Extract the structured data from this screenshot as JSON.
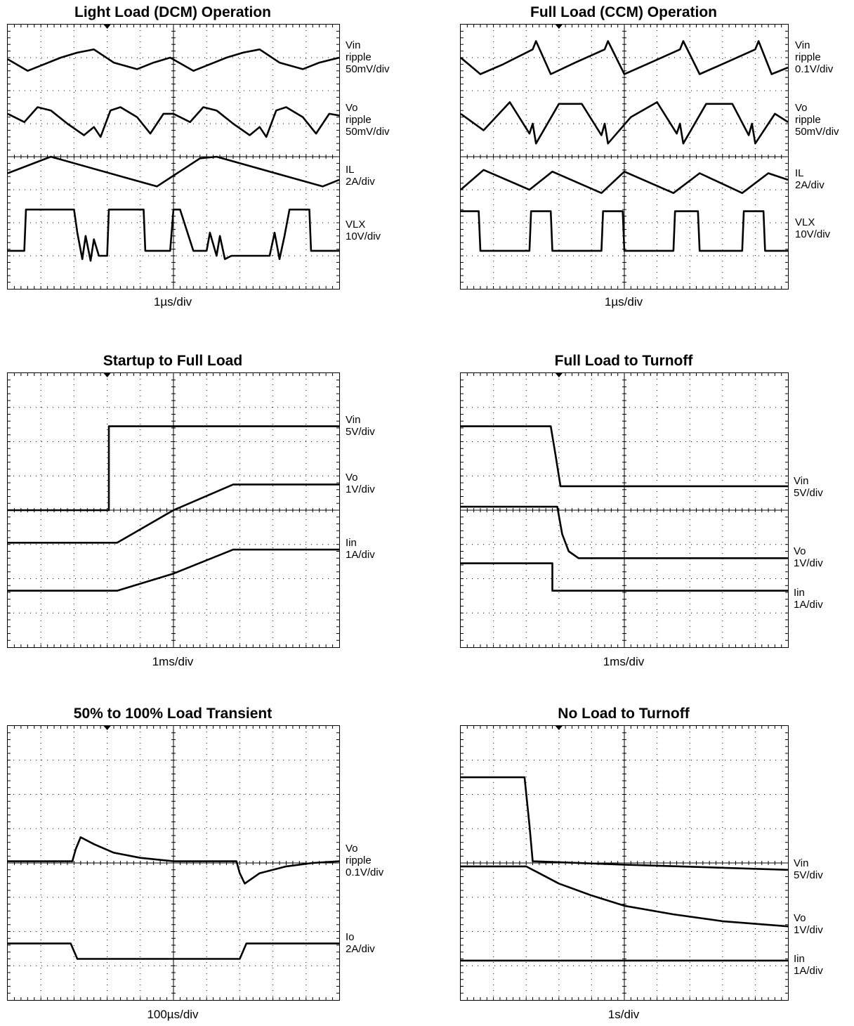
{
  "chart_data": [
    {
      "type": "line",
      "title": "Light Load (DCM) Operation",
      "xlabel": "1µs/div",
      "grid": true,
      "divisions": {
        "x": 10,
        "y": 8
      },
      "xlim": [
        0,
        10
      ],
      "ylim": [
        0,
        8
      ],
      "series": [
        {
          "name": "Vin ripple",
          "scale": "50mV/div",
          "x": [
            0,
            0.6,
            1.1,
            1.6,
            2.1,
            2.6,
            3.2,
            3.9,
            4.4,
            4.9,
            5.6,
            6.1,
            6.6,
            7.1,
            7.6,
            8.2,
            8.9,
            9.4,
            10
          ],
          "y": [
            6.95,
            6.6,
            6.8,
            7.0,
            7.15,
            7.25,
            6.85,
            6.65,
            6.85,
            7.0,
            6.6,
            6.8,
            7.0,
            7.15,
            7.25,
            6.85,
            6.65,
            6.85,
            7.0
          ]
        },
        {
          "name": "Vo ripple",
          "scale": "50mV/div",
          "x": [
            0,
            0.5,
            0.9,
            1.3,
            1.8,
            2.3,
            2.6,
            2.8,
            3.1,
            3.4,
            3.9,
            4.3,
            4.7,
            5.0,
            5.5,
            5.9,
            6.3,
            6.8,
            7.3,
            7.6,
            7.8,
            8.1,
            8.4,
            8.9,
            9.3,
            9.7,
            10
          ],
          "y": [
            5.3,
            5.05,
            5.5,
            5.4,
            5.0,
            4.65,
            4.9,
            4.6,
            5.4,
            5.5,
            5.2,
            4.7,
            5.3,
            5.3,
            5.05,
            5.5,
            5.4,
            5.0,
            4.65,
            4.9,
            4.6,
            5.4,
            5.5,
            5.2,
            4.7,
            5.3,
            5.25
          ]
        },
        {
          "name": "IL",
          "scale": "2A/div",
          "x": [
            0,
            1.3,
            4.5,
            5.8,
            5.8,
            6.3,
            9.5,
            10
          ],
          "y": [
            3.5,
            4.0,
            3.1,
            3.95,
            3.95,
            4.0,
            3.1,
            3.3
          ]
        },
        {
          "name": "VLX",
          "scale": "10V/div",
          "x": [
            0,
            0.5,
            0.55,
            2.0,
            2.1,
            2.25,
            2.35,
            2.5,
            2.6,
            2.75,
            3.0,
            3.05,
            3.25,
            3.6,
            4.1,
            4.15,
            4.9,
            5.0,
            5.05,
            5.2,
            5.6,
            5.7,
            6.0,
            6.1,
            6.3,
            6.4,
            6.55,
            6.75,
            7.9,
            8.05,
            8.2,
            8.35,
            8.5,
            8.6,
            8.85,
            9.1,
            9.15,
            10
          ],
          "y": [
            1.15,
            1.15,
            2.4,
            2.4,
            1.7,
            0.9,
            1.6,
            0.85,
            1.5,
            1.0,
            1.0,
            2.4,
            2.4,
            2.4,
            2.4,
            1.15,
            1.15,
            2.4,
            2.4,
            2.4,
            1.15,
            1.15,
            1.15,
            1.7,
            1.0,
            1.6,
            0.9,
            1.0,
            1.0,
            1.7,
            0.9,
            1.6,
            2.4,
            2.4,
            2.4,
            2.4,
            1.15,
            1.15
          ]
        }
      ],
      "labels": [
        {
          "lines": [
            "Vin",
            "ripple",
            "50mV/div"
          ],
          "y": 7.0
        },
        {
          "lines": [
            "Vo",
            "ripple",
            "50mV/div"
          ],
          "y": 5.1
        },
        {
          "lines": [
            "IL",
            "2A/div"
          ],
          "y": 3.4
        },
        {
          "lines": [
            "VLX",
            "10V/div"
          ],
          "y": 1.75
        }
      ]
    },
    {
      "type": "line",
      "title": "Full Load (CCM) Operation",
      "xlabel": "1µs/div",
      "grid": true,
      "divisions": {
        "x": 10,
        "y": 8
      },
      "xlim": [
        0,
        10
      ],
      "ylim": [
        0,
        8
      ],
      "series": [
        {
          "name": "Vin ripple",
          "scale": "0.1V/div",
          "x": [
            0,
            0.6,
            1.3,
            2.2,
            2.3,
            2.75,
            3.5,
            4.4,
            4.5,
            5.0,
            5.8,
            6.7,
            6.8,
            7.3,
            8.1,
            9.0,
            9.1,
            9.5,
            10
          ],
          "y": [
            7.0,
            6.5,
            6.8,
            7.25,
            7.5,
            6.5,
            6.85,
            7.25,
            7.5,
            6.5,
            6.85,
            7.25,
            7.5,
            6.5,
            6.85,
            7.25,
            7.5,
            6.5,
            6.7
          ]
        },
        {
          "name": "Vo ripple",
          "scale": "50mV/div",
          "x": [
            0,
            0.7,
            1.5,
            2.1,
            2.2,
            2.3,
            3.0,
            3.7,
            4.3,
            4.4,
            4.5,
            5.2,
            6.0,
            6.6,
            6.7,
            6.8,
            7.5,
            8.3,
            8.8,
            8.9,
            9.0,
            9.6,
            10
          ],
          "y": [
            5.3,
            4.8,
            5.65,
            4.7,
            5.0,
            4.4,
            5.6,
            5.6,
            4.65,
            5.0,
            4.4,
            5.2,
            5.65,
            4.7,
            5.0,
            4.4,
            5.6,
            5.6,
            4.65,
            5.0,
            4.4,
            5.3,
            5.05
          ]
        },
        {
          "name": "IL",
          "scale": "2A/div",
          "x": [
            0,
            0.7,
            2.1,
            2.8,
            4.3,
            5.0,
            6.5,
            7.3,
            8.6,
            9.4,
            10
          ],
          "y": [
            3.0,
            3.6,
            3.0,
            3.55,
            2.9,
            3.55,
            2.9,
            3.5,
            2.9,
            3.5,
            3.3
          ]
        },
        {
          "name": "VLX",
          "scale": "10V/div",
          "x": [
            0,
            0.55,
            0.6,
            2.1,
            2.15,
            2.75,
            2.8,
            4.3,
            4.35,
            4.95,
            5.0,
            6.5,
            6.55,
            7.25,
            7.3,
            8.6,
            8.65,
            9.25,
            9.3,
            10
          ],
          "y": [
            2.35,
            2.35,
            1.15,
            1.15,
            2.35,
            2.35,
            1.15,
            1.15,
            2.35,
            2.35,
            1.15,
            1.15,
            2.35,
            2.35,
            1.15,
            1.15,
            2.35,
            2.35,
            1.15,
            1.15
          ]
        }
      ],
      "labels": [
        {
          "lines": [
            "Vin",
            "ripple",
            "0.1V/div"
          ],
          "y": 7.0
        },
        {
          "lines": [
            "Vo",
            "ripple",
            "50mV/div"
          ],
          "y": 5.1
        },
        {
          "lines": [
            "IL",
            "2A/div"
          ],
          "y": 3.3
        },
        {
          "lines": [
            "VLX",
            "10V/div"
          ],
          "y": 1.8
        }
      ]
    },
    {
      "type": "line",
      "title": "Startup to Full Load",
      "xlabel": "1ms/div",
      "grid": true,
      "divisions": {
        "x": 10,
        "y": 8
      },
      "xlim": [
        0,
        10
      ],
      "ylim": [
        0,
        8
      ],
      "series": [
        {
          "name": "Vin",
          "scale": "5V/div",
          "x": [
            0,
            3.05,
            3.05,
            10
          ],
          "y": [
            4.0,
            4.0,
            6.45,
            6.45
          ]
        },
        {
          "name": "Vo",
          "scale": "1V/div",
          "x": [
            0,
            3.3,
            5.0,
            6.8,
            10
          ],
          "y": [
            3.05,
            3.05,
            4.0,
            4.75,
            4.75
          ]
        },
        {
          "name": "Iin",
          "scale": "1A/div",
          "x": [
            0,
            3.3,
            5.0,
            6.8,
            10
          ],
          "y": [
            1.65,
            1.65,
            2.15,
            2.85,
            2.85
          ]
        }
      ],
      "labels": [
        {
          "lines": [
            "Vin",
            "5V/div"
          ],
          "y": 6.45
        },
        {
          "lines": [
            "Vo",
            "1V/div"
          ],
          "y": 4.75
        },
        {
          "lines": [
            "Iin",
            "1A/div"
          ],
          "y": 2.85
        }
      ]
    },
    {
      "type": "line",
      "title": "Full Load to Turnoff",
      "xlabel": "1ms/div",
      "grid": true,
      "divisions": {
        "x": 10,
        "y": 8
      },
      "xlim": [
        0,
        10
      ],
      "ylim": [
        0,
        8
      ],
      "series": [
        {
          "name": "Vin",
          "scale": "5V/div",
          "x": [
            0,
            2.75,
            2.9,
            3.05,
            10
          ],
          "y": [
            6.45,
            6.45,
            5.6,
            4.7,
            4.7
          ]
        },
        {
          "name": "Vo",
          "scale": "1V/div",
          "x": [
            0,
            2.95,
            3.1,
            3.3,
            3.6,
            10
          ],
          "y": [
            4.1,
            4.1,
            3.3,
            2.8,
            2.6,
            2.6
          ]
        },
        {
          "name": "Iin",
          "scale": "1A/div",
          "x": [
            0,
            2.8,
            2.8,
            10
          ],
          "y": [
            2.45,
            2.45,
            1.65,
            1.65
          ]
        }
      ],
      "labels": [
        {
          "lines": [
            "Vin",
            "5V/div"
          ],
          "y": 4.65
        },
        {
          "lines": [
            "Vo",
            "1V/div"
          ],
          "y": 2.6
        },
        {
          "lines": [
            "Iin",
            "1A/div"
          ],
          "y": 1.4
        }
      ]
    },
    {
      "type": "line",
      "title": "50% to 100% Load Transient",
      "xlabel": "100µs/div",
      "grid": true,
      "divisions": {
        "x": 10,
        "y": 8
      },
      "xlim": [
        0,
        10
      ],
      "ylim": [
        0,
        8
      ],
      "series": [
        {
          "name": "Vo ripple",
          "scale": "0.1V/div",
          "x": [
            0,
            1.95,
            2.05,
            2.2,
            2.6,
            3.2,
            4.0,
            5.0,
            6.9,
            7.0,
            7.15,
            7.6,
            8.4,
            9.2,
            10
          ],
          "y": [
            4.05,
            4.05,
            4.4,
            4.75,
            4.55,
            4.3,
            4.15,
            4.05,
            4.05,
            3.7,
            3.4,
            3.7,
            3.9,
            4.0,
            4.05
          ]
        },
        {
          "name": "Io",
          "scale": "2A/div",
          "x": [
            0,
            1.9,
            2.1,
            7.0,
            7.2,
            10
          ],
          "y": [
            1.65,
            1.65,
            1.2,
            1.2,
            1.65,
            1.65
          ]
        }
      ],
      "labels": [
        {
          "lines": [
            "Vo",
            "ripple",
            "0.1V/div"
          ],
          "y": 4.05
        },
        {
          "lines": [
            "Io",
            "2A/div"
          ],
          "y": 1.65
        }
      ]
    },
    {
      "type": "line",
      "title": "No Load to Turnoff",
      "xlabel": "1s/div",
      "grid": true,
      "divisions": {
        "x": 10,
        "y": 8
      },
      "xlim": [
        0,
        10
      ],
      "ylim": [
        0,
        8
      ],
      "series": [
        {
          "name": "Vin",
          "scale": "5V/div",
          "x": [
            0,
            1.95,
            2.1,
            2.2,
            5.0,
            10
          ],
          "y": [
            6.5,
            6.5,
            5.1,
            4.05,
            3.95,
            3.8
          ]
        },
        {
          "name": "Vo",
          "scale": "1V/div",
          "x": [
            0,
            2.0,
            2.3,
            3.0,
            4.0,
            5.0,
            6.5,
            8.0,
            10
          ],
          "y": [
            3.9,
            3.9,
            3.75,
            3.4,
            3.05,
            2.75,
            2.5,
            2.3,
            2.15
          ]
        },
        {
          "name": "Iin",
          "scale": "1A/div",
          "x": [
            0,
            10
          ],
          "y": [
            1.15,
            1.15
          ]
        }
      ],
      "labels": [
        {
          "lines": [
            "Vin",
            "5V/div"
          ],
          "y": 3.8
        },
        {
          "lines": [
            "Vo",
            "1V/div"
          ],
          "y": 2.2
        },
        {
          "lines": [
            "Iin",
            "1A/div"
          ],
          "y": 1.0
        }
      ]
    }
  ]
}
